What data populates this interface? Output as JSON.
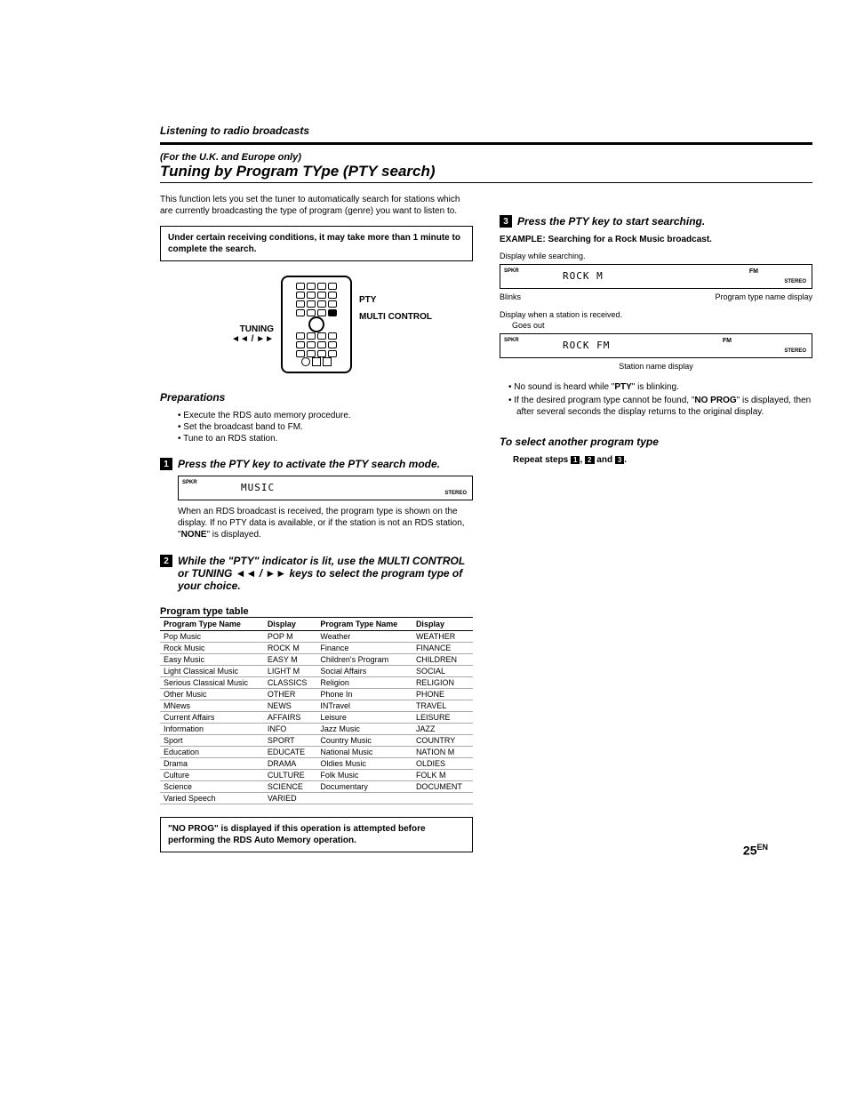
{
  "header": {
    "section": "Listening to radio broadcasts",
    "pretitle": "(For the U.K. and Europe only)",
    "title": "Tuning by Program TYpe (PTY search)"
  },
  "leftCol": {
    "intro": "This function lets you set the tuner to automatically search for stations which are currently broadcasting the type of program (genre) you want to listen to.",
    "noteBox": "Under certain receiving conditions, it may take more than 1 minute to complete the search.",
    "diagram": {
      "label_pty": "PTY",
      "label_multi": "MULTI CONTROL",
      "label_tuning": "TUNING",
      "label_tuning2": "◄◄ / ►►"
    },
    "prep": {
      "heading": "Preparations",
      "items": [
        "Execute the RDS auto memory procedure.",
        "Set the broadcast band to FM.",
        "Tune to an RDS station."
      ]
    },
    "step1": {
      "num": "1",
      "text": "Press the PTY key to activate the PTY search mode.",
      "display": "MUSIC",
      "after": "When an RDS broadcast is received, the program type is shown on the display. If no PTY data is available, or if the station is not an RDS station, \"",
      "none": "NONE",
      "after2": "\" is displayed."
    },
    "step2": {
      "num": "2",
      "text": "While the \"PTY\" indicator is lit, use the MULTI CONTROL or TUNING ◄◄  / ►► keys to select the program type of your choice."
    },
    "tableTitle": "Program type table",
    "tableHeaders": [
      "Program Type Name",
      "Display",
      "Program Type Name",
      "Display"
    ],
    "tableRows": [
      [
        "Pop Music",
        "POP M",
        "Weather",
        "WEATHER"
      ],
      [
        "Rock Music",
        "ROCK M",
        "Finance",
        "FINANCE"
      ],
      [
        "Easy Music",
        "EASY M",
        "Children's Program",
        "CHILDREN"
      ],
      [
        "Light Classical Music",
        "LIGHT M",
        "Social Affairs",
        "SOCIAL"
      ],
      [
        "Serious Classical Music",
        "CLASSICS",
        "Religion",
        "RELIGION"
      ],
      [
        "Other Music",
        "OTHER",
        "Phone In",
        "PHONE"
      ],
      [
        "MNews",
        "NEWS",
        "INTravel",
        "TRAVEL"
      ],
      [
        "Current Affairs",
        "AFFAIRS",
        "Leisure",
        "LEISURE"
      ],
      [
        "Information",
        "INFO",
        "Jazz Music",
        "JAZZ"
      ],
      [
        "Sport",
        "SPORT",
        "Country Music",
        "COUNTRY"
      ],
      [
        "Education",
        "EDUCATE",
        "National Music",
        "NATION M"
      ],
      [
        "Drama",
        "DRAMA",
        "Oldies Music",
        "OLDIES"
      ],
      [
        "Culture",
        "CULTURE",
        "Folk Music",
        "FOLK M"
      ],
      [
        "Science",
        "SCIENCE",
        "Documentary",
        "DOCUMENT"
      ],
      [
        "Varied Speech",
        "VARIED",
        "",
        ""
      ]
    ],
    "noProgBox": "\"NO PROG\" is displayed if this operation is attempted before performing the RDS Auto Memory operation."
  },
  "rightCol": {
    "step3": {
      "num": "3",
      "text": "Press the PTY key to start searching."
    },
    "example": {
      "prefix": "EXAMPLE:",
      "text": " Searching for a Rock Music broadcast."
    },
    "search": {
      "label": "Display while searching.",
      "content": "ROCK M",
      "fm": "FM",
      "spkr": "SPKR",
      "stereo": "STEREO",
      "row_left": "Blinks",
      "row_right": "Program type name display"
    },
    "received": {
      "label": "Display when a station is received.",
      "goesOut": "Goes out",
      "content": "ROCK FM",
      "fm": "FM",
      "spkr": "SPKR",
      "stereo": "STEREO",
      "row_mid": "Station name display"
    },
    "bullets": [
      "No sound is heard while \"PTY\" is blinking.",
      "If the desired program type cannot be found, \"NO PROG\" is displayed, then after several seconds the display returns to the original display."
    ],
    "another": {
      "heading": "To select another program type",
      "text": "Repeat steps ",
      "s1": "1",
      "s2": "2",
      "s3": "3",
      "and1": ", ",
      "and2": " and ",
      "end": "."
    }
  },
  "pageNum": "25",
  "pageLang": "EN"
}
